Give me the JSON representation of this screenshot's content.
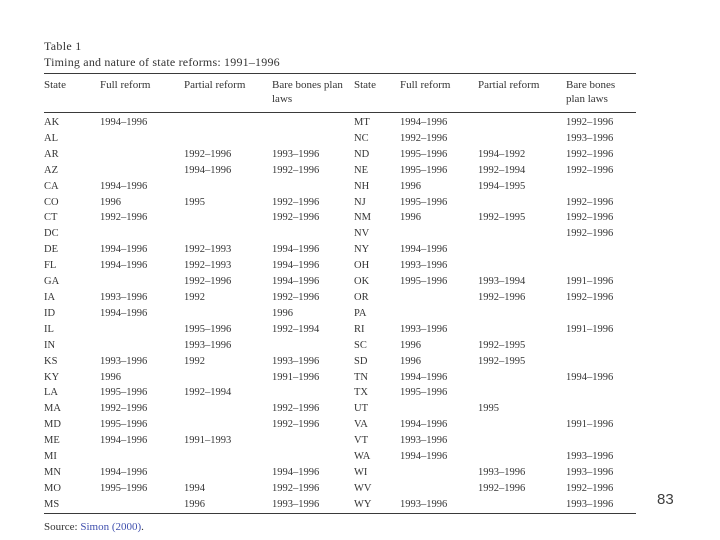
{
  "page": {
    "page_number": "83"
  },
  "table": {
    "label": "Table 1",
    "caption": "Timing and nature of state reforms: 1991–1996",
    "columns": [
      "State",
      "Full reform",
      "Partial reform",
      "Bare bones plan laws"
    ],
    "left_rows": [
      [
        "AK",
        "1994–1996",
        "",
        ""
      ],
      [
        "AL",
        "",
        "",
        ""
      ],
      [
        "AR",
        "",
        "1992–1996",
        "1993–1996"
      ],
      [
        "AZ",
        "",
        "1994–1996",
        "1992–1996"
      ],
      [
        "CA",
        "1994–1996",
        "",
        ""
      ],
      [
        "CO",
        "1996",
        "1995",
        "1992–1996"
      ],
      [
        "CT",
        "1992–1996",
        "",
        "1992–1996"
      ],
      [
        "DC",
        "",
        "",
        ""
      ],
      [
        "DE",
        "1994–1996",
        "1992–1993",
        "1994–1996"
      ],
      [
        "FL",
        "1994–1996",
        "1992–1993",
        "1994–1996"
      ],
      [
        "GA",
        "",
        "1992–1996",
        "1994–1996"
      ],
      [
        "IA",
        "1993–1996",
        "1992",
        "1992–1996"
      ],
      [
        "ID",
        "1994–1996",
        "",
        "1996"
      ],
      [
        "IL",
        "",
        "1995–1996",
        "1992–1994"
      ],
      [
        "IN",
        "",
        "1993–1996",
        ""
      ],
      [
        "KS",
        "1993–1996",
        "1992",
        "1993–1996"
      ],
      [
        "KY",
        "1996",
        "",
        "1991–1996"
      ],
      [
        "LA",
        "1995–1996",
        "1992–1994",
        ""
      ],
      [
        "MA",
        "1992–1996",
        "",
        "1992–1996"
      ],
      [
        "MD",
        "1995–1996",
        "",
        "1992–1996"
      ],
      [
        "ME",
        "1994–1996",
        "1991–1993",
        ""
      ],
      [
        "MI",
        "",
        "",
        ""
      ],
      [
        "MN",
        "1994–1996",
        "",
        "1994–1996"
      ],
      [
        "MO",
        "1995–1996",
        "1994",
        "1992–1996"
      ],
      [
        "MS",
        "",
        "1996",
        "1993–1996"
      ]
    ],
    "right_rows": [
      [
        "MT",
        "1994–1996",
        "",
        "1992–1996"
      ],
      [
        "NC",
        "1992–1996",
        "",
        "1993–1996"
      ],
      [
        "ND",
        "1995–1996",
        "1994–1992",
        "1992–1996"
      ],
      [
        "NE",
        "1995–1996",
        "1992–1994",
        "1992–1996"
      ],
      [
        "NH",
        "1996",
        "1994–1995",
        ""
      ],
      [
        "NJ",
        "1995–1996",
        "",
        "1992–1996"
      ],
      [
        "NM",
        "1996",
        "1992–1995",
        "1992–1996"
      ],
      [
        "NV",
        "",
        "",
        "1992–1996"
      ],
      [
        "NY",
        "1994–1996",
        "",
        ""
      ],
      [
        "OH",
        "1993–1996",
        "",
        ""
      ],
      [
        "OK",
        "1995–1996",
        "1993–1994",
        "1991–1996"
      ],
      [
        "OR",
        "",
        "1992–1996",
        "1992–1996"
      ],
      [
        "PA",
        "",
        "",
        ""
      ],
      [
        "RI",
        "1993–1996",
        "",
        "1991–1996"
      ],
      [
        "SC",
        "1996",
        "1992–1995",
        ""
      ],
      [
        "SD",
        "1996",
        "1992–1995",
        ""
      ],
      [
        "TN",
        "1994–1996",
        "",
        "1994–1996"
      ],
      [
        "TX",
        "1995–1996",
        "",
        ""
      ],
      [
        "UT",
        "",
        "1995",
        ""
      ],
      [
        "VA",
        "1994–1996",
        "",
        "1991–1996"
      ],
      [
        "VT",
        "1993–1996",
        "",
        ""
      ],
      [
        "WA",
        "1994–1996",
        "",
        "1993–1996"
      ],
      [
        "WI",
        "",
        "1993–1996",
        "1993–1996"
      ],
      [
        "WV",
        "",
        "1992–1996",
        "1992–1996"
      ],
      [
        "WY",
        "1993–1996",
        "",
        "1993–1996"
      ]
    ],
    "source_prefix": "Source: ",
    "source_link": "Simon (2000)",
    "source_suffix": "."
  }
}
